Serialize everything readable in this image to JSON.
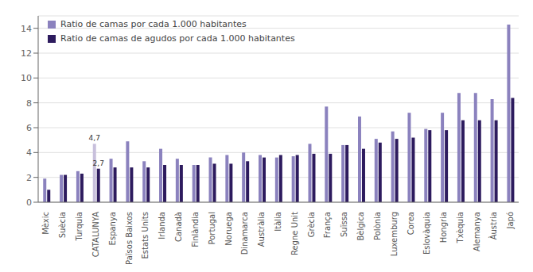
{
  "chart_data": {
    "type": "bar",
    "categories": [
      "Mèxic",
      "Suècia",
      "Turquia",
      "CATALUNYA",
      "Espanya",
      "Països Baixos",
      "Estats Units",
      "Irlanda",
      "Canadà",
      "Finlàndia",
      "Portugal",
      "Noruega",
      "Dinamarca",
      "Austràlia",
      "Itàlia",
      "Regne Unit",
      "Grècia",
      "França",
      "Suïssa",
      "Bèlgica",
      "Polònia",
      "Luxemburg",
      "Corea",
      "Eslovàquia",
      "Hongria",
      "Txèquia",
      "Alemanya",
      "Àustria",
      "Japó"
    ],
    "series": [
      {
        "name": "Ratio de camas por cada 1.000 habitantes",
        "color": "#8b82be",
        "colors": [
          "#8b82be",
          "#8b82be",
          "#8b82be",
          "#c8c0dc",
          "#8b82be",
          "#8b82be",
          "#8b82be",
          "#8b82be",
          "#8b82be",
          "#8b82be",
          "#8b82be",
          "#8b82be",
          "#8b82be",
          "#8b82be",
          "#8b82be",
          "#8b82be",
          "#8b82be",
          "#8b82be",
          "#8b82be",
          "#8b82be",
          "#8b82be",
          "#8b82be",
          "#8b82be",
          "#8b82be",
          "#8b82be",
          "#8b82be",
          "#8b82be",
          "#8b82be",
          "#8b82be"
        ],
        "values": [
          1.9,
          2.2,
          2.5,
          4.7,
          3.5,
          4.9,
          3.3,
          4.3,
          3.5,
          3.0,
          3.6,
          3.8,
          4.0,
          3.8,
          3.6,
          3.7,
          4.7,
          7.7,
          4.6,
          6.9,
          5.1,
          5.7,
          7.2,
          5.9,
          7.2,
          8.8,
          8.8,
          8.3,
          14.3
        ]
      },
      {
        "name": "Ratio de camas de agudos por cada 1.000 habitantes",
        "color": "#2d1b5e",
        "values": [
          1.0,
          2.2,
          2.3,
          2.7,
          2.8,
          2.8,
          2.8,
          3.0,
          3.0,
          3.0,
          3.1,
          3.1,
          3.3,
          3.6,
          3.8,
          3.8,
          3.9,
          3.9,
          4.6,
          4.3,
          4.8,
          5.1,
          5.2,
          5.8,
          5.8,
          6.6,
          6.6,
          6.6,
          8.4
        ]
      }
    ],
    "ylim": [
      0,
      15
    ],
    "yticks": [
      0,
      2,
      4,
      6,
      8,
      10,
      12,
      14
    ],
    "grid": true,
    "legend": "upper left",
    "annotations": [
      {
        "text": "4,7",
        "category": "CATALUNYA",
        "series": "Ratio de camas por cada 1.000 habitantes"
      },
      {
        "text": "2,7",
        "category": "CATALUNYA",
        "series": "Ratio de camas de agudos por cada 1.000 habitantes"
      }
    ]
  }
}
